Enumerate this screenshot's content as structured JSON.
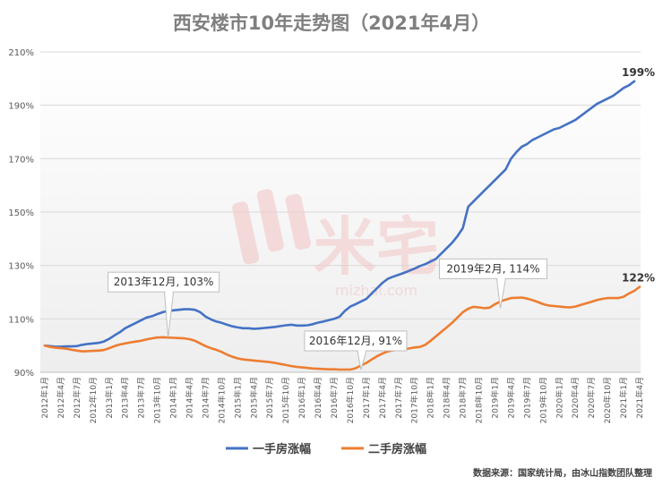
{
  "chart_data": {
    "type": "line",
    "title": "西安楼市10年走势图（2021年4月）",
    "ylim": [
      90,
      210
    ],
    "yticks": [
      90,
      110,
      130,
      150,
      170,
      190,
      210
    ],
    "ytick_labels": [
      "90%",
      "110%",
      "130%",
      "150%",
      "170%",
      "190%",
      "210%"
    ],
    "xtick_labels": [
      "2012年1月",
      "2012年4月",
      "2012年7月",
      "2012年10月",
      "2013年1月",
      "2013年4月",
      "2013年7月",
      "2013年10月",
      "2014年1月",
      "2014年4月",
      "2014年7月",
      "2014年10月",
      "2015年1月",
      "2015年4月",
      "2015年7月",
      "2015年10月",
      "2016年1月",
      "2016年4月",
      "2016年7月",
      "2016年10月",
      "2017年1月",
      "2017年4月",
      "2017年7月",
      "2017年10月",
      "2018年1月",
      "2018年4月",
      "2018年7月",
      "2018年10月",
      "2019年1月",
      "2019年4月",
      "2019年7月",
      "2019年10月",
      "2020年1月",
      "2020年4月",
      "2020年7月",
      "2020年10月",
      "2021年1月",
      "2021年4月"
    ],
    "grid": true,
    "legend": "bottom",
    "series": [
      {
        "name": "一手房涨幅",
        "color": "#4472c4",
        "values": [
          100,
          99.8,
          99.6,
          99.6,
          99.7,
          99.7,
          99.8,
          100.3,
          100.6,
          100.8,
          101,
          101.5,
          102.5,
          103.8,
          105,
          106.5,
          107.5,
          108.5,
          109.5,
          110.5,
          111,
          111.8,
          112.5,
          113,
          113.2,
          113.4,
          113.6,
          113.6,
          113.4,
          112.5,
          110.8,
          109.8,
          109,
          108.5,
          107.8,
          107.2,
          106.8,
          106.5,
          106.5,
          106.3,
          106.4,
          106.6,
          106.8,
          107,
          107.3,
          107.6,
          107.8,
          107.5,
          107.5,
          107.6,
          108,
          108.6,
          109,
          109.5,
          110,
          110.8,
          113,
          114.6,
          115.5,
          116.5,
          117.5,
          119.5,
          121.5,
          123.5,
          125,
          125.8,
          126.5,
          127.2,
          128,
          128.8,
          129.8,
          130.5,
          131.5,
          132.5,
          134.5,
          136.5,
          138.5,
          141,
          144,
          152,
          154,
          156,
          158,
          160,
          162,
          164,
          166,
          170,
          172.5,
          174.5,
          175.5,
          177,
          178,
          179,
          180,
          181,
          181.5,
          182.5,
          183.5,
          184.5,
          186,
          187.5,
          189,
          190.5,
          191.5,
          192.5,
          193.5,
          195,
          196.5,
          197.5,
          199
        ]
      },
      {
        "name": "二手房涨幅",
        "color": "#ed7d31",
        "values": [
          100,
          99.5,
          99.2,
          99,
          98.8,
          98.4,
          98.1,
          97.8,
          97.9,
          98,
          98.1,
          98.3,
          99,
          99.8,
          100.4,
          100.8,
          101.2,
          101.5,
          101.8,
          102.3,
          102.7,
          103,
          103.1,
          103,
          102.9,
          102.8,
          102.7,
          102.4,
          101.8,
          100.8,
          99.8,
          99,
          98.4,
          97.6,
          96.6,
          95.8,
          95.2,
          94.8,
          94.6,
          94.4,
          94.2,
          94,
          93.8,
          93.5,
          93.1,
          92.7,
          92.3,
          92,
          91.8,
          91.6,
          91.4,
          91.3,
          91.2,
          91.1,
          91.1,
          91,
          91,
          91,
          91.5,
          92.5,
          93.5,
          94.8,
          96,
          97,
          97.8,
          98.2,
          98.4,
          98.6,
          98.9,
          99.3,
          99.5,
          100.3,
          101.8,
          103.5,
          105.2,
          106.8,
          108.5,
          110.5,
          112.5,
          113.8,
          114.5,
          114.3,
          114,
          114.2,
          115.5,
          116.5,
          117.2,
          117.8,
          117.9,
          118,
          117.6,
          117,
          116.3,
          115.5,
          115,
          114.8,
          114.6,
          114.4,
          114.3,
          114.6,
          115.2,
          115.8,
          116.4,
          117,
          117.5,
          117.8,
          117.8,
          117.8,
          118.3,
          119.5,
          120.5,
          122
        ]
      }
    ],
    "annotations": [
      {
        "text": "2013年12月, 103%",
        "x": "2013年12月",
        "y": 103
      },
      {
        "text": "2016年12月, 91%",
        "x": "2016年12月",
        "y": 91
      },
      {
        "text": "2019年2月, 114%",
        "x": "2019年2月",
        "y": 114
      }
    ],
    "end_labels": [
      {
        "series": "一手房涨幅",
        "text": "199%"
      },
      {
        "series": "二手房涨幅",
        "text": "122%"
      }
    ],
    "source": "数据来源：国家统计局，由冰山指数团队整理"
  },
  "watermark": {
    "text": "米宅",
    "url": "mizhai.com"
  }
}
